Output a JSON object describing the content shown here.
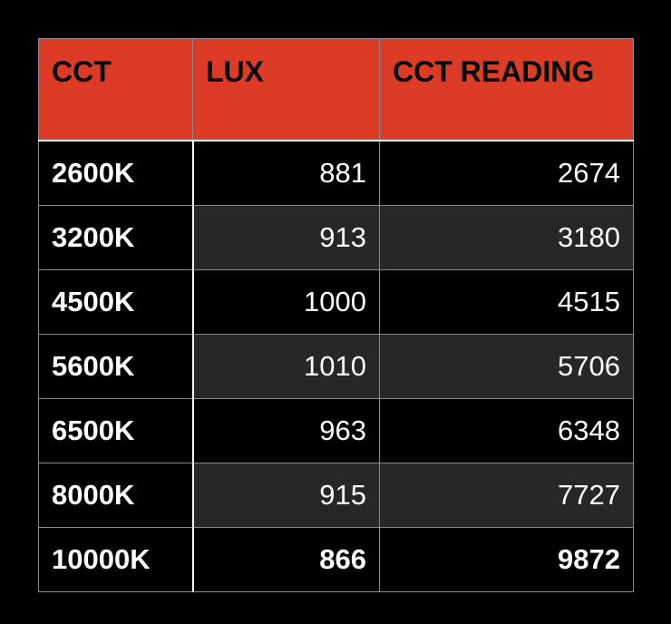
{
  "table": {
    "headers": [
      "CCT",
      "LUX",
      "CCT READING"
    ],
    "rows": [
      {
        "cct": "2600K",
        "lux": "881",
        "reading": "2674"
      },
      {
        "cct": "3200K",
        "lux": "913",
        "reading": "3180"
      },
      {
        "cct": "4500K",
        "lux": "1000",
        "reading": "4515"
      },
      {
        "cct": "5600K",
        "lux": "1010",
        "reading": "5706"
      },
      {
        "cct": "6500K",
        "lux": "963",
        "reading": "6348"
      },
      {
        "cct": "8000K",
        "lux": "915",
        "reading": "7727"
      },
      {
        "cct": "10000K",
        "lux": "866",
        "reading": "9872"
      }
    ],
    "header_color": "#dc3c26"
  }
}
